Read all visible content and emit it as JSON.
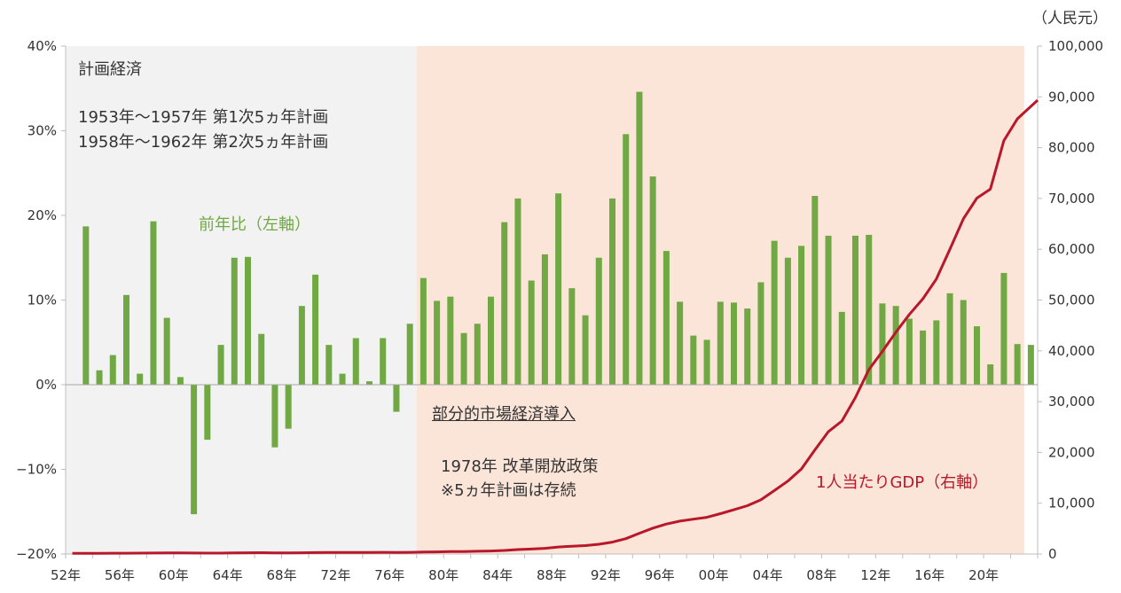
{
  "chart_data": {
    "type": "bar+line",
    "right_axis_unit": "（人民元）",
    "x_tick_labels": [
      "52年",
      "56年",
      "60年",
      "64年",
      "68年",
      "72年",
      "76年",
      "80年",
      "84年",
      "88年",
      "92年",
      "96年",
      "00年",
      "04年",
      "08年",
      "12年",
      "16年",
      "20年"
    ],
    "years": [
      1952,
      1953,
      1954,
      1955,
      1956,
      1957,
      1958,
      1959,
      1960,
      1961,
      1962,
      1963,
      1964,
      1965,
      1966,
      1967,
      1968,
      1969,
      1970,
      1971,
      1972,
      1973,
      1974,
      1975,
      1976,
      1977,
      1978,
      1979,
      1980,
      1981,
      1982,
      1983,
      1984,
      1985,
      1986,
      1987,
      1988,
      1989,
      1990,
      1991,
      1992,
      1993,
      1994,
      1995,
      1996,
      1997,
      1998,
      1999,
      2000,
      2001,
      2002,
      2003,
      2004,
      2005,
      2006,
      2007,
      2008,
      2009,
      2010,
      2011,
      2012,
      2013,
      2014,
      2015,
      2016,
      2017,
      2018,
      2019,
      2020,
      2021,
      2022,
      2023
    ],
    "series": [
      {
        "name": "前年比（左軸）",
        "axis": "left",
        "type": "bar",
        "color": "#70a844",
        "values": [
          null,
          18.7,
          1.7,
          3.5,
          10.6,
          1.3,
          19.3,
          7.9,
          0.9,
          -15.3,
          -6.5,
          4.7,
          15.0,
          15.1,
          6.0,
          -7.4,
          -5.2,
          9.3,
          13.0,
          4.7,
          1.3,
          5.5,
          0.4,
          5.5,
          -3.2,
          7.2,
          12.6,
          9.9,
          10.4,
          6.1,
          7.2,
          10.4,
          19.2,
          22.0,
          12.3,
          15.4,
          22.6,
          11.4,
          8.2,
          15.0,
          22.0,
          29.6,
          34.6,
          24.6,
          15.8,
          9.8,
          5.8,
          5.3,
          9.8,
          9.7,
          9.0,
          12.1,
          17.0,
          15.0,
          16.4,
          22.3,
          17.6,
          8.6,
          17.6,
          17.7,
          9.6,
          9.3,
          7.8,
          6.4,
          7.6,
          10.8,
          10.0,
          6.9,
          2.4,
          13.2,
          4.8,
          4.7
        ]
      },
      {
        "name": "1人当たりGDP（右軸）",
        "axis": "right",
        "type": "line",
        "color": "#b8182a",
        "values": [
          119,
          142,
          144,
          150,
          165,
          168,
          200,
          216,
          218,
          185,
          173,
          181,
          208,
          240,
          254,
          235,
          222,
          243,
          275,
          288,
          292,
          309,
          310,
          327,
          316,
          339,
          385,
          423,
          468,
          497,
          533,
          588,
          702,
          866,
          973,
          1123,
          1378,
          1536,
          1663,
          1912,
          2334,
          3027,
          4081,
          5091,
          5898,
          6481,
          6860,
          7229,
          7942,
          8717,
          9506,
          10666,
          12487,
          14368,
          16738,
          20494,
          24100,
          26180,
          30808,
          36302,
          39874,
          43684,
          47173,
          50237,
          54139,
          60014,
          66006,
          70078,
          71828,
          81370,
          85698,
          89358
        ]
      }
    ],
    "left_axis": {
      "ylim": [
        -20,
        40
      ],
      "ticks": [
        -20,
        -10,
        0,
        10,
        20,
        30,
        40
      ],
      "tick_labels": [
        "−20%",
        "−10%",
        "0%",
        "10%",
        "20%",
        "30%",
        "40%"
      ]
    },
    "right_axis": {
      "ylim": [
        0,
        100000
      ],
      "ticks": [
        0,
        10000,
        20000,
        30000,
        40000,
        50000,
        60000,
        70000,
        80000,
        90000,
        100000
      ],
      "tick_labels": [
        "0",
        "10,000",
        "20,000",
        "30,000",
        "40,000",
        "50,000",
        "60,000",
        "70,000",
        "80,000",
        "90,000",
        "100,000"
      ]
    },
    "periods": [
      {
        "label": "計画経済",
        "from": 1952,
        "to": 1978,
        "color": "#f2f2f2"
      },
      {
        "label": "部分的市場経済導入",
        "from": 1978,
        "to": 2023,
        "color": "#fbe4d8"
      }
    ],
    "annotations": {
      "plan_title": "計画経済",
      "plan_line1": "1953年～1957年 第1次5ヵ年計画",
      "plan_line2": "1958年～1962年 第2次5ヵ年計画",
      "bar_series_label": "前年比（左軸）",
      "market_title": "部分的市場経済導入",
      "market_line1": "1978年 改革開放政策",
      "market_line2": "※5ヵ年計画は存続",
      "line_series_label": "1人当たりGDP（右軸）"
    }
  }
}
